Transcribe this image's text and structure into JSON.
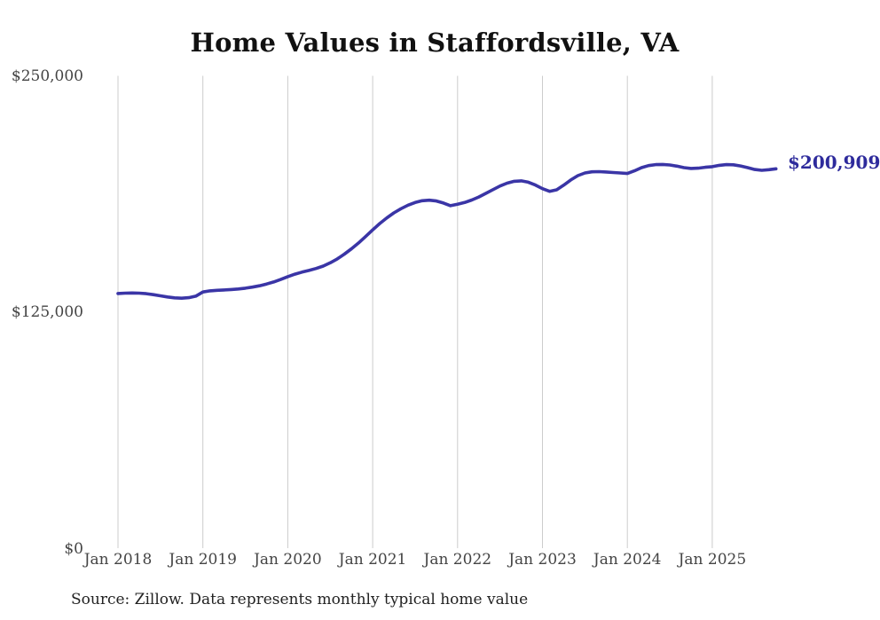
{
  "chart": {
    "title": "Home Values in Staffordsville, VA",
    "end_label": "$200,909",
    "source": "Source: Zillow. Data represents monthly typical home value"
  },
  "chart_data": {
    "type": "line",
    "title": "Home Values in Staffordsville, VA",
    "xlabel": "",
    "ylabel": "",
    "ylim": [
      0,
      250000
    ],
    "grid": "vertical",
    "legend": "none",
    "line_color": "#3a35a6",
    "grid_color": "#cccccc",
    "x_start": "Jan 2018",
    "frequency": "monthly",
    "x_tick_labels": [
      "Jan 2018",
      "Jan 2019",
      "Jan 2020",
      "Jan 2021",
      "Jan 2022",
      "Jan 2023",
      "Jan 2024",
      "Jan 2025"
    ],
    "y_ticks": [
      {
        "value": 0,
        "label": "$0"
      },
      {
        "value": 125000,
        "label": "$125,000"
      },
      {
        "value": 250000,
        "label": "$250,000"
      }
    ],
    "series": [
      {
        "name": "Typical home value",
        "values": [
          135000,
          135200,
          135300,
          135200,
          134900,
          134400,
          133800,
          133200,
          132700,
          132500,
          132800,
          133600,
          135800,
          136400,
          136700,
          136900,
          137100,
          137400,
          137800,
          138400,
          139100,
          140000,
          141100,
          142400,
          143900,
          145200,
          146300,
          147200,
          148200,
          149500,
          151200,
          153300,
          155800,
          158600,
          161700,
          165100,
          168600,
          172000,
          175000,
          177600,
          179800,
          181700,
          183100,
          184000,
          184300,
          183900,
          182800,
          181400,
          182200,
          183100,
          184400,
          186000,
          187900,
          189900,
          191800,
          193300,
          194300,
          194500,
          193800,
          192300,
          190400,
          189000,
          189800,
          192200,
          195000,
          197300,
          198700,
          199300,
          199400,
          199200,
          198900,
          198700,
          198400,
          199800,
          201500,
          202600,
          203100,
          203200,
          202900,
          202300,
          201500,
          201100,
          201200,
          201700,
          202000,
          202700,
          203100,
          203000,
          202400,
          201500,
          200500,
          200100,
          200400,
          200909
        ]
      }
    ],
    "annotation": {
      "text": "$200,909",
      "color": "#2e2b9c"
    }
  }
}
